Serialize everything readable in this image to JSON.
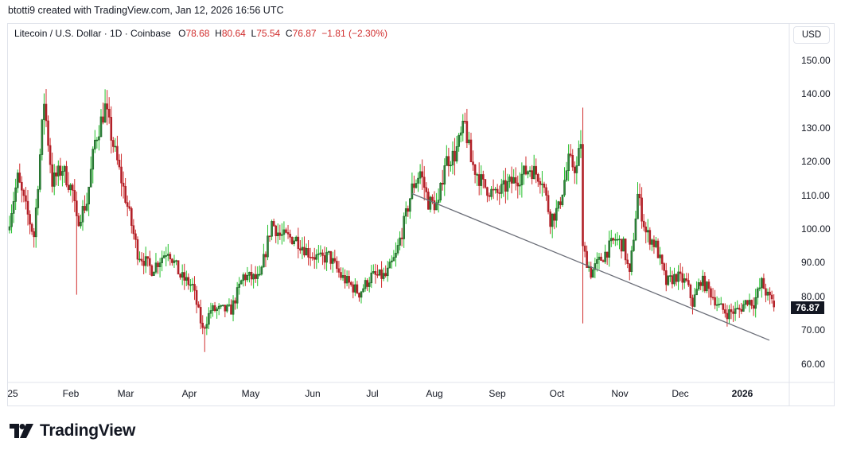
{
  "credit": "btotti9 created with TradingView.com, Jan 12, 2026 16:56 UTC",
  "legend": {
    "symbol": "Litecoin / U.S. Dollar · 1D · Coinbase",
    "o_label": "O",
    "o_value": "78.68",
    "h_label": "H",
    "h_value": "80.64",
    "l_label": "L",
    "l_value": "75.54",
    "c_label": "C",
    "c_value": "76.87",
    "change": "−1.81 (−2.30%)"
  },
  "currency_button": "USD",
  "last_price": "76.87",
  "brand": {
    "name": "TradingView",
    "icon": "tradingview-logo-icon"
  },
  "colors": {
    "up": "#22c02a",
    "up_body": "#2e8b3a",
    "down": "#d12e2e",
    "down_body": "#b22028",
    "trendline": "#6b6e78",
    "last_price_bg": "#131722"
  },
  "chart_data": {
    "type": "candlestick",
    "title": "Litecoin / U.S. Dollar · 1D · Coinbase",
    "ylabel": "USD",
    "ylim": [
      55,
      158
    ],
    "y_ticks": [
      "150.00",
      "140.00",
      "130.00",
      "120.00",
      "110.00",
      "100.00",
      "90.00",
      "80.00",
      "70.00",
      "60.00"
    ],
    "x_ticks": [
      "'25",
      "Feb",
      "Mar",
      "Apr",
      "May",
      "Jun",
      "Jul",
      "Aug",
      "Sep",
      "Oct",
      "Nov",
      "Dec",
      "2026"
    ],
    "last": {
      "open": 78.68,
      "high": 80.64,
      "low": 75.54,
      "close": 76.87,
      "change": -1.81,
      "change_pct": -2.3
    },
    "trendline": {
      "from": {
        "date": "2025-07-18",
        "price": 110.5
      },
      "to": {
        "date": "2026-01-12",
        "price": 67.0
      }
    },
    "close_keyframes": [
      [
        "2025-01-01",
        103
      ],
      [
        "2025-01-05",
        115
      ],
      [
        "2025-01-10",
        104
      ],
      [
        "2025-01-13",
        98
      ],
      [
        "2025-01-18",
        138
      ],
      [
        "2025-01-22",
        114
      ],
      [
        "2025-01-27",
        118
      ],
      [
        "2025-02-01",
        111
      ],
      [
        "2025-02-03",
        102
      ],
      [
        "2025-02-08",
        108
      ],
      [
        "2025-02-12",
        126
      ],
      [
        "2025-02-17",
        136
      ],
      [
        "2025-02-21",
        125
      ],
      [
        "2025-02-26",
        112
      ],
      [
        "2025-03-01",
        104
      ],
      [
        "2025-03-05",
        93
      ],
      [
        "2025-03-12",
        88
      ],
      [
        "2025-03-20",
        94
      ],
      [
        "2025-03-26",
        86
      ],
      [
        "2025-04-01",
        83
      ],
      [
        "2025-04-06",
        70
      ],
      [
        "2025-04-10",
        76
      ],
      [
        "2025-04-20",
        76
      ],
      [
        "2025-04-26",
        86
      ],
      [
        "2025-05-04",
        85
      ],
      [
        "2025-05-10",
        102
      ],
      [
        "2025-05-14",
        98
      ],
      [
        "2025-05-22",
        97
      ],
      [
        "2025-05-28",
        93
      ],
      [
        "2025-06-03",
        91
      ],
      [
        "2025-06-07",
        92
      ],
      [
        "2025-06-13",
        86
      ],
      [
        "2025-06-22",
        81
      ],
      [
        "2025-06-28",
        86
      ],
      [
        "2025-07-05",
        86
      ],
      [
        "2025-07-10",
        92
      ],
      [
        "2025-07-15",
        104
      ],
      [
        "2025-07-18",
        112
      ],
      [
        "2025-07-22",
        117
      ],
      [
        "2025-07-26",
        108
      ],
      [
        "2025-07-31",
        107
      ],
      [
        "2025-08-03",
        120
      ],
      [
        "2025-08-08",
        122
      ],
      [
        "2025-08-13",
        131
      ],
      [
        "2025-08-16",
        120
      ],
      [
        "2025-08-22",
        113
      ],
      [
        "2025-08-28",
        110
      ],
      [
        "2025-09-03",
        113
      ],
      [
        "2025-09-10",
        116
      ],
      [
        "2025-09-14",
        118
      ],
      [
        "2025-09-20",
        115
      ],
      [
        "2025-09-24",
        103
      ],
      [
        "2025-09-28",
        106
      ],
      [
        "2025-10-03",
        120
      ],
      [
        "2025-10-07",
        118
      ],
      [
        "2025-10-09",
        126
      ],
      [
        "2025-10-10",
        94
      ],
      [
        "2025-10-14",
        87
      ],
      [
        "2025-10-20",
        92
      ],
      [
        "2025-10-26",
        97
      ],
      [
        "2025-10-30",
        95
      ],
      [
        "2025-11-02",
        86
      ],
      [
        "2025-11-06",
        110
      ],
      [
        "2025-11-10",
        99
      ],
      [
        "2025-11-15",
        95
      ],
      [
        "2025-11-20",
        84
      ],
      [
        "2025-11-25",
        86
      ],
      [
        "2025-11-30",
        84
      ],
      [
        "2025-12-03",
        78
      ],
      [
        "2025-12-07",
        85
      ],
      [
        "2025-12-12",
        81
      ],
      [
        "2025-12-16",
        77
      ],
      [
        "2025-12-20",
        75
      ],
      [
        "2025-12-26",
        76
      ],
      [
        "2025-12-30",
        79
      ],
      [
        "2026-01-02",
        78
      ],
      [
        "2026-01-06",
        84
      ],
      [
        "2026-01-09",
        80
      ],
      [
        "2026-01-11",
        78.68
      ],
      [
        "2026-01-12",
        76.87
      ]
    ],
    "notable_wicks": [
      {
        "date": "2025-01-19",
        "high": 141.5
      },
      {
        "date": "2025-02-03",
        "low": 80.5
      },
      {
        "date": "2025-04-07",
        "low": 63.5
      },
      {
        "date": "2025-08-13",
        "high": 134.5
      },
      {
        "date": "2025-10-10",
        "high": 136.0,
        "low": 72.0
      },
      {
        "date": "2025-11-07",
        "high": 113.5
      }
    ]
  }
}
